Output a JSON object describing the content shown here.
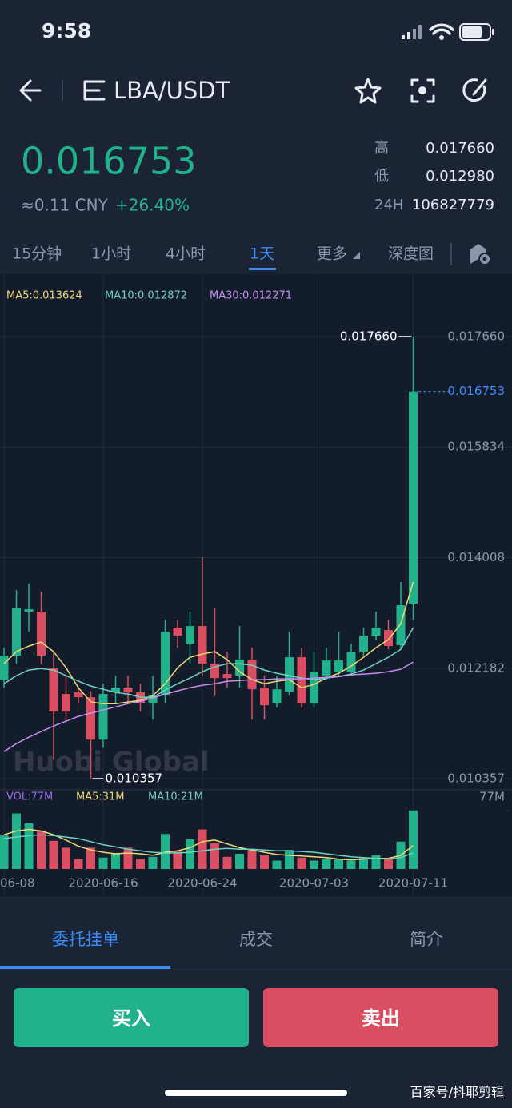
{
  "status_bar": {
    "time": "9:58"
  },
  "header": {
    "pair": "LBA/USDT"
  },
  "ticker": {
    "price": "0.016753",
    "cny": "≈0.11 CNY",
    "change": "+26.40%",
    "stats": [
      {
        "label": "高",
        "value": "0.017660"
      },
      {
        "label": "低",
        "value": "0.012980"
      },
      {
        "label": "24H",
        "value": "106827779"
      }
    ]
  },
  "intervals": [
    "15分钟",
    "1小时",
    "4小时",
    "1天",
    "更多",
    "深度图"
  ],
  "chart_data": [
    {
      "type": "candlestick",
      "colors": {
        "up": "#21b28c",
        "down": "#d94f61"
      },
      "open": [
        0.011993,
        0.012389,
        0.013116,
        0.013116,
        0.012191,
        0.011755,
        0.011782,
        0.011702,
        0.011002,
        0.011782,
        0.011861,
        0.011782,
        0.011597,
        0.011729,
        0.012852,
        0.012587,
        0.012878,
        0.012257,
        0.012085,
        0.012059,
        0.012323,
        0.011861,
        0.011597,
        0.011795,
        0.012363,
        0.011597,
        0.012059,
        0.012125,
        0.012125,
        0.012455,
        0.012719,
        0.012812,
        0.012561,
        0.013248
      ],
      "high": [
        0.012521,
        0.013472,
        0.013578,
        0.013446,
        0.012455,
        0.012059,
        0.011861,
        0.011795,
        0.011927,
        0.012059,
        0.012059,
        0.011927,
        0.012059,
        0.012984,
        0.012984,
        0.013116,
        0.014014,
        0.013182,
        0.012455,
        0.012878,
        0.012521,
        0.012059,
        0.012059,
        0.012786,
        0.012521,
        0.012455,
        0.012521,
        0.012786,
        0.012587,
        0.012852,
        0.013116,
        0.012984,
        0.013605,
        0.01766
      ],
      "low": [
        0.011861,
        0.012257,
        0.012786,
        0.012257,
        0.010672,
        0.011332,
        0.011597,
        0.010357,
        0.01087,
        0.011597,
        0.011597,
        0.011465,
        0.011332,
        0.011597,
        0.012521,
        0.012257,
        0.012059,
        0.011729,
        0.011861,
        0.011861,
        0.011332,
        0.011332,
        0.011531,
        0.011729,
        0.011531,
        0.011531,
        0.011993,
        0.012059,
        0.012059,
        0.012389,
        0.012653,
        0.012495,
        0.012495,
        0.012984
      ],
      "close": [
        0.012389,
        0.013182,
        0.013155,
        0.012389,
        0.011465,
        0.011465,
        0.011702,
        0.011002,
        0.011755,
        0.011861,
        0.011782,
        0.011597,
        0.011729,
        0.012786,
        0.012719,
        0.012878,
        0.012257,
        0.012019,
        0.012019,
        0.012323,
        0.011834,
        0.01157,
        0.011834,
        0.012363,
        0.011597,
        0.012125,
        0.01231,
        0.01231,
        0.012455,
        0.012719,
        0.012852,
        0.012548,
        0.013221,
        0.016753
      ],
      "series": [
        {
          "name": "MA5:0.013624",
          "color": "#f0d774",
          "values": [
            0.012257,
            0.012455,
            0.012547,
            0.012613,
            0.012455,
            0.012191,
            0.01186,
            0.011623,
            0.011596,
            0.011596,
            0.011623,
            0.011649,
            0.011728,
            0.011926,
            0.012191,
            0.012362,
            0.012415,
            0.012455,
            0.012323,
            0.012125,
            0.011993,
            0.011926,
            0.011966,
            0.011993,
            0.01186,
            0.011913,
            0.012019,
            0.012098,
            0.012217,
            0.012362,
            0.012521,
            0.012653,
            0.012917,
            0.013604
          ]
        },
        {
          "name": "MA10:0.012872",
          "color": "#6fd1c0",
          "values": [
            0.011926,
            0.012059,
            0.012151,
            0.012177,
            0.012151,
            0.012059,
            0.011966,
            0.011887,
            0.011834,
            0.011781,
            0.011755,
            0.011702,
            0.011702,
            0.011821,
            0.011926,
            0.012019,
            0.012125,
            0.012204,
            0.012257,
            0.012257,
            0.01223,
            0.012151,
            0.012098,
            0.012059,
            0.012019,
            0.011993,
            0.012019,
            0.012045,
            0.012085,
            0.012151,
            0.012257,
            0.012362,
            0.012494,
            0.012851
          ]
        },
        {
          "name": "MA30:0.012271",
          "color": "#c88ef0",
          "values": [
            0.010804,
            0.010936,
            0.011041,
            0.011134,
            0.011226,
            0.011306,
            0.011385,
            0.011438,
            0.011491,
            0.011543,
            0.011596,
            0.011636,
            0.011689,
            0.011755,
            0.011808,
            0.01186,
            0.0119,
            0.011926,
            0.011966,
            0.011979,
            0.011993,
            0.011993,
            0.012006,
            0.012006,
            0.012006,
            0.012019,
            0.012032,
            0.012045,
            0.012072,
            0.012085,
            0.012098,
            0.012125,
            0.012164,
            0.012283
          ]
        }
      ],
      "ylim": [
        0.010185,
        0.017818
      ],
      "yticks": [
        {
          "value": 0.01766,
          "label": "0.017660"
        },
        0.015834,
        {
          "value": 0.014008,
          "label": "0.014008"
        },
        0.012182,
        0.010357
      ],
      "last_price": 0.016753,
      "annotations": [
        {
          "text": "0.017660",
          "value": 0.01766
        },
        {
          "text": "0.010357",
          "value": 0.010357
        }
      ],
      "watermark": "Huobi Global"
    },
    {
      "type": "bar",
      "title": "VOL:77M",
      "categories": [
        "06-08",
        null,
        null,
        null,
        null,
        null,
        null,
        null,
        "2020-06-16",
        null,
        null,
        null,
        null,
        null,
        null,
        null,
        "2020-06-24",
        null,
        null,
        null,
        null,
        null,
        null,
        null,
        null,
        "2020-07-03",
        null,
        null,
        null,
        null,
        null,
        null,
        null,
        "2020-07-11"
      ],
      "values": [
        44,
        73,
        60,
        50,
        37,
        28,
        13,
        28,
        15,
        21,
        28,
        13,
        16,
        46,
        23,
        39,
        52,
        34,
        16,
        20,
        25,
        18,
        11,
        25,
        15,
        11,
        13,
        13,
        11,
        15,
        18,
        13,
        36,
        77
      ],
      "series": [
        {
          "name": "MA5:31M",
          "color": "#f0d774",
          "values": [
            45,
            50,
            52,
            50,
            45,
            38,
            30,
            25,
            22,
            20,
            21,
            20,
            18,
            22,
            24,
            28,
            36,
            38,
            33,
            28,
            25,
            22,
            19,
            18,
            17,
            16,
            15,
            13,
            12,
            13,
            14,
            14,
            18,
            31
          ]
        },
        {
          "name": "MA10:21M",
          "color": "#6fd1c0",
          "values": [
            40,
            42,
            44,
            45,
            44,
            42,
            40,
            36,
            32,
            29,
            26,
            24,
            22,
            21,
            21,
            22,
            24,
            26,
            27,
            26,
            26,
            25,
            24,
            24,
            23,
            22,
            20,
            18,
            16,
            15,
            14,
            13,
            15,
            21
          ]
        }
      ],
      "ylim": [
        0,
        102
      ],
      "yticks": [
        {
          "value": 77,
          "label": "77M"
        }
      ]
    }
  ],
  "tabs": [
    "委托挂单",
    "成交",
    "简介"
  ],
  "buttons": {
    "buy": "买入",
    "sell": "卖出"
  },
  "footer": "百家号/抖耶剪辑"
}
